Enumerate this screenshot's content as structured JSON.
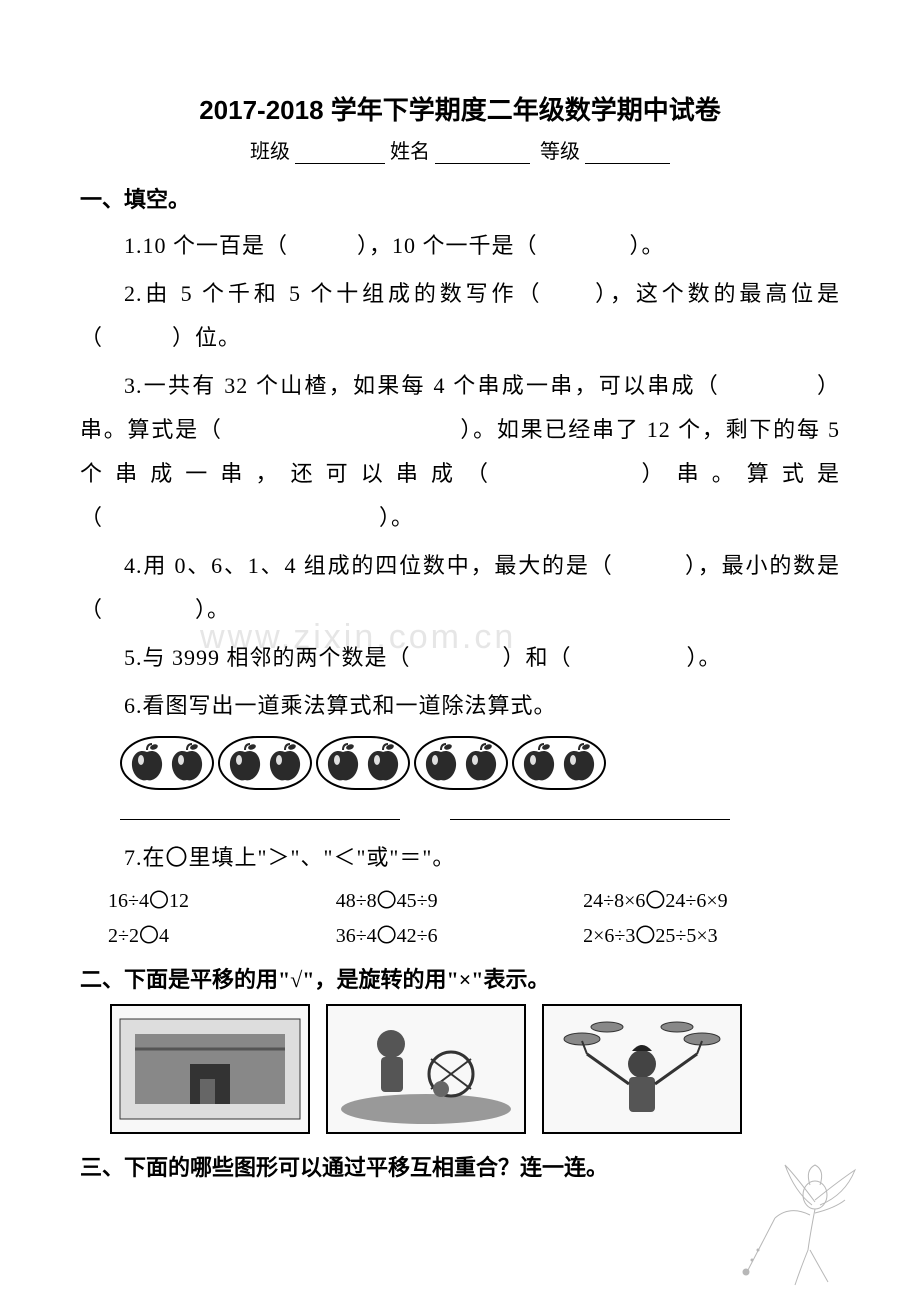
{
  "title": "2017-2018 学年下学期度二年级数学期中试卷",
  "meta": {
    "class_label": "班级",
    "name_label": "姓名",
    "grade_label": "等级"
  },
  "section1": {
    "heading": "一、填空。",
    "q1": "1.10 个一百是（　　　），10 个一千是（　　　　）。",
    "q2": "2.由 5 个千和 5 个十组成的数写作（　　），这个数的最高位是（　　　）位。",
    "q3": "3.一共有 32 个山楂，如果每 4 个串成一串，可以串成（　　　　）串。算式是（　　　　　　　　　　）。如果已经串了 12 个，剩下的每 5 个串成一串，还可以串成（　　　　）串。算式是（　　　　　　　　　　　　）。",
    "q4": "4.用 0、6、1、4 组成的四位数中，最大的是（　　　），最小的数是（　　　　）。",
    "q5": "5.与 3999 相邻的两个数是（　　　　）和（　　　　　）。",
    "q6": "6.看图写出一道乘法算式和一道除法算式。",
    "q7": "7.在〇里填上\"＞\"、\"＜\"或\"＝\"。",
    "compare": {
      "row1": {
        "c1": "16÷4〇12",
        "c2": "48÷8〇45÷9",
        "c3": "24÷8×6〇24÷6×9"
      },
      "row2": {
        "c1": "2÷2〇4",
        "c2": "36÷4〇42÷6",
        "c3": "2×6÷3〇25÷5×3"
      }
    }
  },
  "section2": {
    "heading": "二、下面是平移的用\"√\"，是旋转的用\"×\"表示。"
  },
  "section3": {
    "heading": "三、下面的哪些图形可以通过平移互相重合？连一连。"
  },
  "watermark": "www.zixin.com.cn",
  "apple_count": 10,
  "pair_count": 5,
  "apple_color": "#2a2a2a",
  "img_placeholders": 3
}
